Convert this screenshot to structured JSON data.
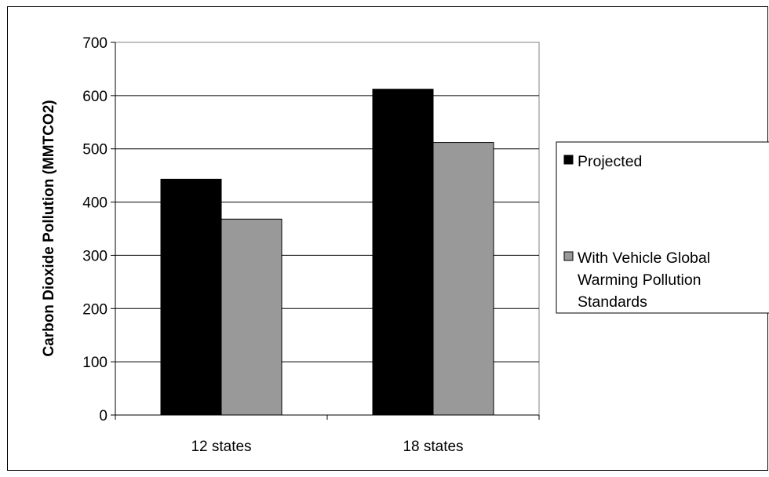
{
  "chart_data": {
    "type": "bar",
    "title": "",
    "xlabel": "",
    "ylabel": "Carbon Dioxide Pollution (MMTCO2)",
    "categories": [
      "12 states",
      "18 states"
    ],
    "series": [
      {
        "name": "Projected",
        "values": [
          443,
          612
        ],
        "color": "#000000"
      },
      {
        "name_lines": [
          "With Vehicle Global",
          "Warming Pollution",
          "Standards"
        ],
        "name": "With Vehicle Global Warming Pollution Standards",
        "values": [
          368,
          512
        ],
        "color": "#999999"
      }
    ],
    "ylim": [
      0,
      700
    ],
    "yticks": [
      0,
      100,
      200,
      300,
      400,
      500,
      600,
      700
    ],
    "grid": true,
    "legend_position": "right"
  }
}
